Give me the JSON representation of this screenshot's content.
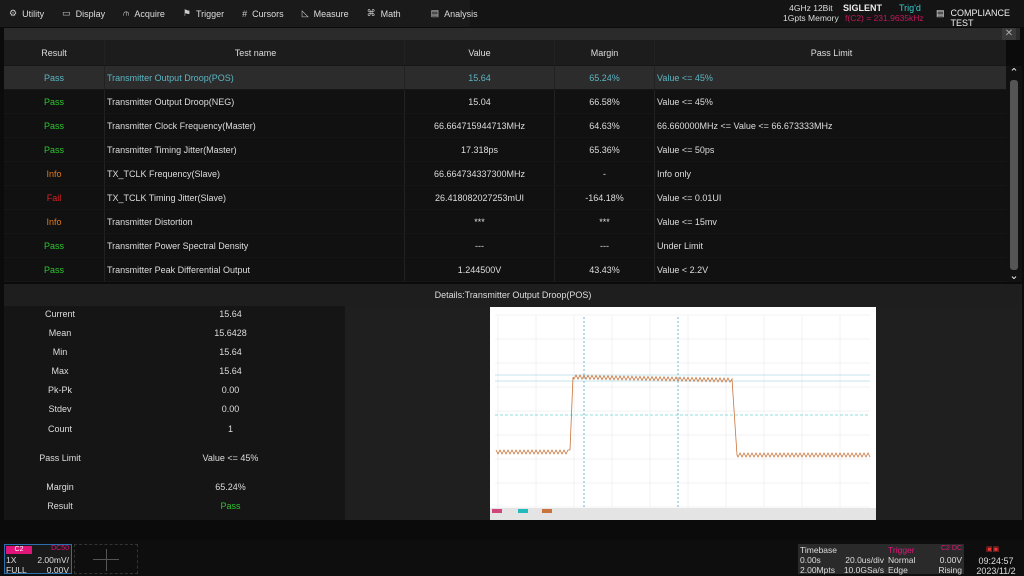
{
  "menu": [
    {
      "label": "Utility",
      "icon": "gear-icon",
      "glyph": "⚙"
    },
    {
      "label": "Display",
      "icon": "monitor-icon",
      "glyph": "▭"
    },
    {
      "label": "Acquire",
      "icon": "acquire-icon",
      "glyph": "⫙"
    },
    {
      "label": "Trigger",
      "icon": "flag-icon",
      "glyph": "⚑"
    },
    {
      "label": "Cursors",
      "icon": "cursors-icon",
      "glyph": "#"
    },
    {
      "label": "Measure",
      "icon": "measure-icon",
      "glyph": "◺"
    },
    {
      "label": "Math",
      "icon": "math-icon",
      "glyph": "⌘"
    },
    {
      "label": "Analysis",
      "icon": "analysis-icon",
      "glyph": "▤"
    }
  ],
  "status": {
    "spec1": "4GHz 12Bit",
    "spec2": "1Gpts Memory",
    "brand": "SIGLENT",
    "trig_state": "Trig'd",
    "freq": "f(C2) = 231.9635kHz",
    "app": "COMPLIANCE TEST"
  },
  "table": {
    "headers": [
      "Result",
      "Test name",
      "Value",
      "Margin",
      "Pass Limit"
    ],
    "rows": [
      {
        "result": "Pass",
        "status": "pass",
        "name": "Transmitter Output Droop(POS)",
        "value": "15.64",
        "margin": "65.24%",
        "limit": "Value <= 45%",
        "selected": true
      },
      {
        "result": "Pass",
        "status": "pass",
        "name": "Transmitter Output Droop(NEG)",
        "value": "15.04",
        "margin": "66.58%",
        "limit": "Value <= 45%"
      },
      {
        "result": "Pass",
        "status": "pass",
        "name": "Transmitter Clock Frequency(Master)",
        "value": "66.664715944713MHz",
        "margin": "64.63%",
        "limit": "66.660000MHz <= Value <= 66.673333MHz"
      },
      {
        "result": "Pass",
        "status": "pass",
        "name": "Transmitter Timing Jitter(Master)",
        "value": "17.318ps",
        "margin": "65.36%",
        "limit": "Value <= 50ps"
      },
      {
        "result": "Info",
        "status": "info",
        "name": "TX_TCLK Frequency(Slave)",
        "value": "66.664734337300MHz",
        "margin": "-",
        "limit": "Info only"
      },
      {
        "result": "Fail",
        "status": "fail",
        "name": "TX_TCLK Timing Jitter(Slave)",
        "value": "26.418082027253mUI",
        "margin": "-164.18%",
        "limit": "Value <= 0.01UI"
      },
      {
        "result": "Info",
        "status": "info",
        "name": "Transmitter Distortion",
        "value": "***",
        "margin": "***",
        "limit": "Value <= 15mv"
      },
      {
        "result": "Pass",
        "status": "pass",
        "name": "Transmitter Power Spectral Density",
        "value": "---",
        "margin": "---",
        "limit": "Under Limit"
      },
      {
        "result": "Pass",
        "status": "pass",
        "name": "Transmitter Peak Differential Output",
        "value": "1.244500V",
        "margin": "43.43%",
        "limit": "Value < 2.2V"
      }
    ]
  },
  "details": {
    "title": "Details:Transmitter Output Droop(POS)",
    "stats": [
      {
        "label": "Current",
        "value": "15.64"
      },
      {
        "label": "Mean",
        "value": "15.6428"
      },
      {
        "label": "Min",
        "value": "15.64"
      },
      {
        "label": "Max",
        "value": "15.64"
      },
      {
        "label": "Pk-Pk",
        "value": "0.00"
      },
      {
        "label": "Stdev",
        "value": "0.00"
      },
      {
        "label": "Count",
        "value": "1"
      },
      {
        "label": "Pass Limit",
        "value": "Value <= 45%"
      },
      {
        "label": "Margin",
        "value": "65.24%"
      },
      {
        "label": "Result",
        "value": "Pass",
        "status": "pass"
      }
    ]
  },
  "channel": {
    "name": "C2",
    "coupling": "DC50",
    "probe": "1X",
    "scale": "2.00mV/",
    "bw": "FULL",
    "offset": "0.00V"
  },
  "timebase": {
    "title": "Timebase",
    "delay": "0.00s",
    "scale": "20.0us/div",
    "mem": "2.00Mpts",
    "rate": "10.0GSa/s"
  },
  "trigger": {
    "title": "Trigger",
    "source": "C2 DC",
    "mode": "Normal",
    "level": "0.00V",
    "type": "Edge",
    "slope": "Rising"
  },
  "clock": {
    "time": "09:24:57",
    "date": "2023/11/2"
  },
  "colors": {
    "pass": "#2fc42f",
    "info": "#e07a1f",
    "fail": "#dd2222",
    "selected": "#5bb6c4",
    "channel": "#e0157a"
  }
}
